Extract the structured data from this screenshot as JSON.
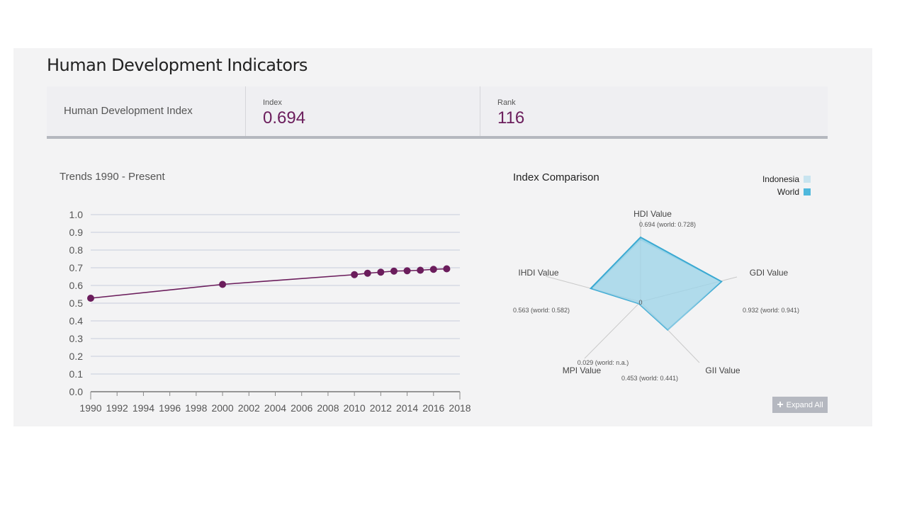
{
  "header": {
    "title": "Human Development Indicators"
  },
  "summary": {
    "name": "Human Development Index",
    "index_label": "Index",
    "index_value": "0.694",
    "rank_label": "Rank",
    "rank_value": "116"
  },
  "trend": {
    "title": "Trends 1990 - Present"
  },
  "comparison": {
    "title": "Index Comparison",
    "legend": [
      {
        "label": "Indonesia",
        "color": "#c8e4ef"
      },
      {
        "label": "World",
        "color": "#4fb8dc"
      }
    ],
    "center_label": "0",
    "expand_label": "Expand All",
    "expand_icon": "plus-icon"
  },
  "chart_data": [
    {
      "type": "line",
      "title": "Trends 1990 - Present",
      "xlabel": "",
      "ylabel": "",
      "xlim": [
        1990,
        2018
      ],
      "ylim": [
        0,
        1
      ],
      "grid": true,
      "x_ticks": [
        "1990",
        "1992",
        "1994",
        "1996",
        "1998",
        "2000",
        "2002",
        "2004",
        "2006",
        "2008",
        "2010",
        "2012",
        "2014",
        "2016",
        "2018"
      ],
      "y_ticks": [
        "0.0",
        "0.1",
        "0.2",
        "0.3",
        "0.4",
        "0.5",
        "0.6",
        "0.7",
        "0.8",
        "0.9",
        "1.0"
      ],
      "color": "#6b1d5c",
      "x": [
        1990,
        2000,
        2010,
        2011,
        2012,
        2013,
        2014,
        2015,
        2016,
        2017
      ],
      "y": [
        0.528,
        0.606,
        0.661,
        0.669,
        0.675,
        0.681,
        0.683,
        0.686,
        0.691,
        0.694
      ]
    },
    {
      "type": "radar",
      "title": "Index Comparison",
      "axes": [
        {
          "name": "HDI Value",
          "value": 0.694,
          "world": 0.728,
          "label": "0.694 (world: 0.728)"
        },
        {
          "name": "GDI Value",
          "value": 0.932,
          "world": 0.941,
          "label": "0.932 (world: 0.941)"
        },
        {
          "name": "GII Value",
          "value": 0.453,
          "world": 0.441,
          "label": "0.453 (world: 0.441)"
        },
        {
          "name": "MPI Value",
          "value": 0.029,
          "world": null,
          "label": "0.029 (world: n.a.)"
        },
        {
          "name": "IHDI Value",
          "value": 0.563,
          "world": 0.582,
          "label": "0.563 (world: 0.582)"
        }
      ],
      "series": [
        {
          "name": "Indonesia",
          "color": "#c8e4ef"
        },
        {
          "name": "World",
          "color": "#4fb8dc"
        }
      ],
      "legend_position": "top-right"
    }
  ]
}
